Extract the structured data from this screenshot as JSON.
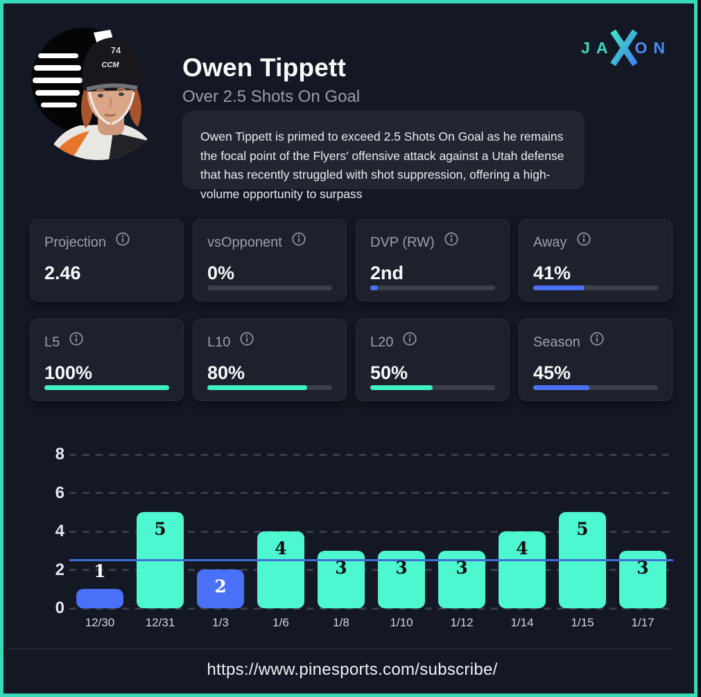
{
  "header": {
    "player_name": "Owen Tippett",
    "prop_line": "Over 2.5 Shots On Goal",
    "description": "Owen Tippett is primed to exceed 2.5 Shots On Goal as he remains the focal point of the Flyers' offensive attack against a Utah defense that has recently struggled with shot suppression, offering a high-volume opportunity to surpass",
    "avatar_alt": "Owen Tippett Philadelphia Flyers headshot"
  },
  "brand": {
    "left": "JA",
    "x": "X",
    "right": "ON"
  },
  "stat_cards": [
    {
      "label": "Projection",
      "value": "2.46",
      "bar": null
    },
    {
      "label": "vsOpponent",
      "value": "0%",
      "bar": {
        "pct": 0,
        "color": "#4a70f8"
      }
    },
    {
      "label": "DVP (RW)",
      "value": "2nd",
      "bar": {
        "pct": 6,
        "color": "#4a70f8"
      }
    },
    {
      "label": "Away",
      "value": "41%",
      "bar": {
        "pct": 41,
        "color": "#4a70f8"
      }
    },
    {
      "label": "L5",
      "value": "100%",
      "bar": {
        "pct": 100,
        "color": "#3ff0c5"
      }
    },
    {
      "label": "L10",
      "value": "80%",
      "bar": {
        "pct": 80,
        "color": "#3ff0c5"
      }
    },
    {
      "label": "L20",
      "value": "50%",
      "bar": {
        "pct": 50,
        "color": "#3ff0c5"
      }
    },
    {
      "label": "Season",
      "value": "45%",
      "bar": {
        "pct": 45,
        "color": "#4a70f8"
      }
    }
  ],
  "chart_data": {
    "type": "bar",
    "title": "",
    "xlabel": "",
    "ylabel": "",
    "categories": [
      "12/30",
      "12/31",
      "1/3",
      "1/6",
      "1/8",
      "1/10",
      "1/12",
      "1/14",
      "1/15",
      "1/17"
    ],
    "values": [
      1,
      5,
      2,
      4,
      3,
      3,
      3,
      4,
      5,
      3
    ],
    "bar_colors": [
      "#4a70f8",
      "#4df7cf",
      "#4a70f8",
      "#4df7cf",
      "#4df7cf",
      "#4df7cf",
      "#4df7cf",
      "#4df7cf",
      "#4df7cf",
      "#4df7cf"
    ],
    "value_label_colors": [
      "#ffffff",
      "#0d1013",
      "#ffffff",
      "#0d1013",
      "#0d1013",
      "#0d1013",
      "#0d1013",
      "#0d1013",
      "#0d1013",
      "#0d1013"
    ],
    "threshold_line": {
      "value": 2.5,
      "color": "#3e6fd9"
    },
    "yticks": [
      0,
      2,
      4,
      6,
      8
    ],
    "ylim": [
      0,
      8.5
    ],
    "grid": "horizontal dashed",
    "legend": "none"
  },
  "footer": {
    "url": "https://www.pinesports.com/subscribe/"
  },
  "colors": {
    "page_bg": "#141824",
    "page_border": "#38d9b9",
    "card_bg": "#1d212c",
    "accent_teal": "#3ff0c5",
    "accent_blue": "#4a70f8",
    "threshold_blue": "#3e6fd9"
  }
}
